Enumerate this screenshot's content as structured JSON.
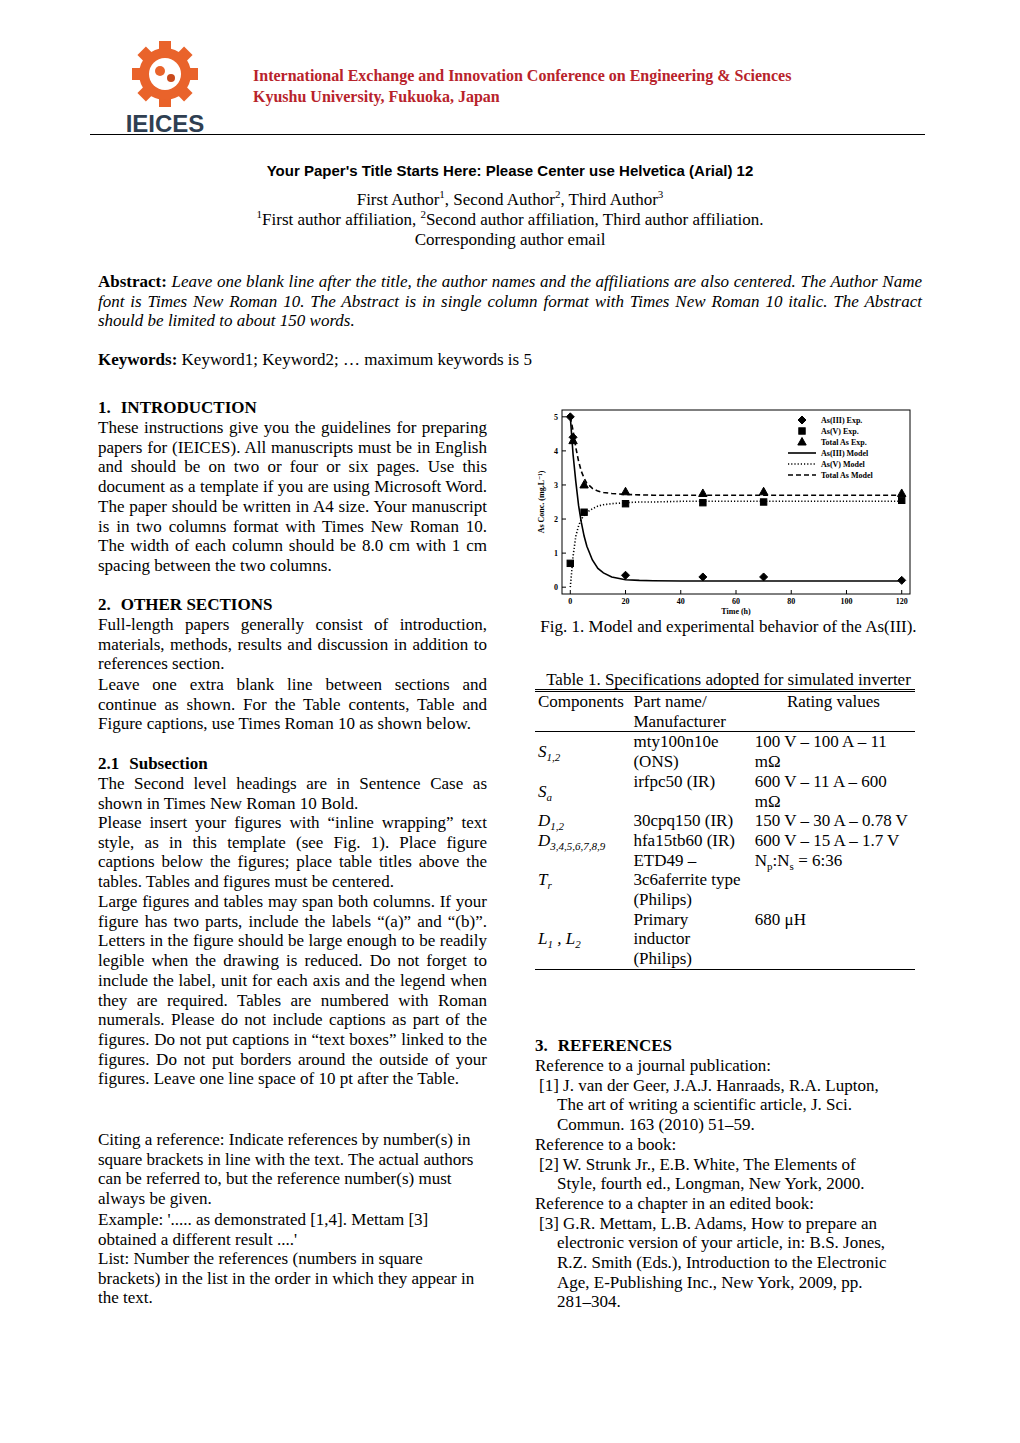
{
  "header": {
    "logo_text": "IEICES",
    "conference": "International Exchange and Innovation Conference on Engineering & Sciences",
    "venue": "Kyushu University, Fukuoka, Japan"
  },
  "title": "Your Paper's Title Starts Here: Please Center use Helvetica (Arial) 12",
  "authors": [
    {
      "text": "First Author"
    },
    {
      "text": "1",
      "style": "sup"
    },
    {
      "text": ", Second Author"
    },
    {
      "text": "2",
      "style": "sup"
    },
    {
      "text": ", Third Author"
    },
    {
      "text": "3",
      "style": "sup"
    }
  ],
  "affiliations": [
    {
      "text": "1",
      "style": "sup"
    },
    {
      "text": "First author affiliation, "
    },
    {
      "text": "2",
      "style": "sup"
    },
    {
      "text": "Second author affiliation, Third author affiliation."
    }
  ],
  "email": "Corresponding author email",
  "abstract": {
    "label": "Abstract:",
    "text": "Leave one blank line after the title, the author names and the affiliations are also centered. The Author Name font is Times New Roman 10. The Abstract is in single column format with Times New Roman 10 italic. The Abstract should be limited to about 150 words."
  },
  "keywords": {
    "label": "Keywords:",
    "text": "Keyword1; Keyword2; … maximum keywords is 5"
  },
  "sections": [
    {
      "number": "1.",
      "heading": "INTRODUCTION",
      "paragraphs": [
        "These instructions give you the guidelines for preparing papers for (IEICES). All manuscripts must be in English and should be on two or four or six pages. Use this document as a template if you are using Microsoft Word. The paper should be written in A4 size. Your manuscript is in two columns format with Times New Roman 10. The width of each column should be 8.0 cm with 1 cm spacing between the two columns."
      ]
    },
    {
      "number": "2.",
      "heading": "OTHER SECTIONS",
      "paragraphs": [
        "Full-length papers generally consist of introduction, materials, methods, results and discussion in addition to references section.",
        "Leave one extra blank line between sections and continue as shown. For the Table contents, Table and Figure captions, use Times Roman 10 as shown below."
      ]
    },
    {
      "number": "2.1",
      "heading": "Subsection",
      "paragraphs": [
        "The Second level headings are in Sentence Case as shown in Times New Roman 10 Bold.",
        "Please insert your figures with “inline wrapping” text style, as in this template (see Fig. 1). Place figure captions below the figures; place table titles above the tables. Tables and figures must be centered.",
        "Large figures and tables may span both columns. If your figure has two parts, include the labels “(a)” and “(b)”. Letters in the figure should be large enough to be readily legible when the drawing is reduced. Do not forget to include the label, unit for each axis and the legend when they are required. Tables are numbered with Roman numerals. Please do not include captions as part of the figures. Do not put captions in “text boxes” linked to the figures. Do not put borders around the outside of your figures. Leave one line space of 10 pt after the Table.",
        "Citing a reference: Indicate references by number(s) in square brackets in line with the text. The actual authors can be referred to, but the reference number(s) must always be given.",
        "Example: '..... as demonstrated [1,4]. Mettam [3] obtained a different result ....'",
        "List: Number the references (numbers in square brackets) in the list in the order in which they appear in the text."
      ]
    }
  ],
  "chart_data": {
    "type": "scatter",
    "x_label": "Time (h)",
    "y_label": "As Conc. (mg.L⁻¹)",
    "xlim": [
      -3,
      123
    ],
    "ylim": [
      -0.2,
      5.2
    ],
    "xticks": [
      0,
      20,
      40,
      60,
      80,
      100,
      120
    ],
    "yticks": [
      0,
      1,
      2,
      3,
      4,
      5
    ],
    "grid": false,
    "legend": "upper right",
    "series": [
      {
        "name": "As(III) Exp.",
        "type": "scatter",
        "marker": "diamond",
        "color": "#000000",
        "x": [
          0,
          1,
          20,
          48,
          70,
          120
        ],
        "values": [
          5.0,
          4.4,
          0.35,
          0.3,
          0.3,
          0.2
        ]
      },
      {
        "name": "As(V) Exp.",
        "type": "scatter",
        "marker": "square",
        "color": "#000000",
        "x": [
          0,
          5,
          20,
          48,
          70,
          120
        ],
        "values": [
          0.7,
          2.2,
          2.45,
          2.48,
          2.5,
          2.55
        ]
      },
      {
        "name": "Total As Exp.",
        "type": "scatter",
        "marker": "triangle",
        "color": "#000000",
        "x": [
          1,
          5,
          20,
          48,
          70,
          120
        ],
        "values": [
          4.3,
          3.0,
          2.8,
          2.75,
          2.8,
          2.75
        ]
      },
      {
        "name": "As(III) Model",
        "type": "line",
        "line_style": "solid",
        "color": "#000000",
        "x": [
          0,
          1,
          2,
          3,
          4,
          5,
          6,
          8,
          10,
          12,
          15,
          20,
          25,
          30,
          40,
          50,
          60,
          80,
          100,
          120
        ],
        "values": [
          5.0,
          3.9,
          3.1,
          2.4,
          1.9,
          1.5,
          1.2,
          0.8,
          0.55,
          0.42,
          0.3,
          0.22,
          0.2,
          0.19,
          0.18,
          0.18,
          0.18,
          0.18,
          0.18,
          0.18
        ]
      },
      {
        "name": "As(V) Model",
        "type": "line",
        "line_style": "dotted",
        "color": "#000000",
        "x": [
          0,
          1,
          2,
          3,
          4,
          5,
          6,
          8,
          10,
          12,
          15,
          20,
          25,
          30,
          40,
          50,
          60,
          80,
          100,
          120
        ],
        "values": [
          0.0,
          0.9,
          1.5,
          1.8,
          2.0,
          2.1,
          2.2,
          2.3,
          2.38,
          2.42,
          2.45,
          2.48,
          2.5,
          2.5,
          2.52,
          2.52,
          2.52,
          2.52,
          2.52,
          2.52
        ]
      },
      {
        "name": "Total As Model",
        "type": "line",
        "line_style": "dashed",
        "color": "#000000",
        "x": [
          0,
          1,
          2,
          3,
          4,
          5,
          6,
          8,
          10,
          12,
          15,
          20,
          25,
          30,
          40,
          50,
          60,
          80,
          100,
          120
        ],
        "values": [
          5.0,
          4.6,
          4.1,
          3.7,
          3.4,
          3.2,
          3.05,
          2.9,
          2.82,
          2.78,
          2.75,
          2.72,
          2.71,
          2.7,
          2.7,
          2.7,
          2.7,
          2.7,
          2.7,
          2.7
        ]
      }
    ]
  },
  "figure_caption": "Fig. 1. Model and experimental behavior of the As(III).",
  "table": {
    "title": "Table 1. Specifications adopted for simulated inverter",
    "header": [
      "Components",
      "Part name/ Manufacturer",
      "Rating values"
    ],
    "rows": [
      [
        [
          {
            "text": "S"
          },
          {
            "text": "1,2",
            "style": "sub"
          }
        ],
        "mty100n10e (ONS)",
        "100 V – 100 A – 11 mΩ"
      ],
      [
        [
          {
            "text": "S"
          },
          {
            "text": "a",
            "style": "sub"
          }
        ],
        "irfpc50 (IR)",
        "600 V – 11 A – 600 mΩ"
      ],
      [
        [
          {
            "text": "D"
          },
          {
            "text": "1,2",
            "style": "sub"
          }
        ],
        "30cpq150 (IR)",
        "150 V – 30 A – 0.78 V"
      ],
      [
        [
          {
            "text": "D"
          },
          {
            "text": "3,4,5,6,7,8,9",
            "style": "sub"
          }
        ],
        "hfa15tb60 (IR)",
        "600 V – 15 A – 1.7 V"
      ],
      [
        [
          {
            "text": "T"
          },
          {
            "text": "r",
            "style": "sub"
          }
        ],
        "ETD49 – 3c6aferrite type (Philips)",
        [
          {
            "text": "N"
          },
          {
            "text": "p",
            "style": "sub"
          },
          {
            "text": ":N"
          },
          {
            "text": "s",
            "style": "sub"
          },
          {
            "text": " = 6:36"
          }
        ]
      ],
      [
        [
          {
            "text": "L"
          },
          {
            "text": "1",
            "style": "sub"
          },
          {
            "text": " , L"
          },
          {
            "text": "2",
            "style": "sub"
          }
        ],
        "Primary inductor (Philips)",
        "680 μH"
      ]
    ]
  },
  "references": {
    "number": "3.",
    "heading": "REFERENCES",
    "items": [
      {
        "intro": "Reference to a journal publication:",
        "ref": "[1] J. van der Geer, J.A.J. Hanraads, R.A. Lupton, The art of writing a scientific article, J. Sci. Commun. 163 (2010) 51–59."
      },
      {
        "intro": "Reference to a book:",
        "ref": "[2] W. Strunk Jr., E.B. White, The Elements of Style, fourth ed., Longman, New York, 2000."
      },
      {
        "intro": "Reference to a chapter in an edited book:",
        "ref": "[3] G.R. Mettam, L.B. Adams, How to prepare an electronic version of your article, in: B.S. Jones, R.Z. Smith (Eds.), Introduction to the Electronic Age, E-Publishing Inc., New York, 2009, pp. 281–304."
      }
    ]
  }
}
